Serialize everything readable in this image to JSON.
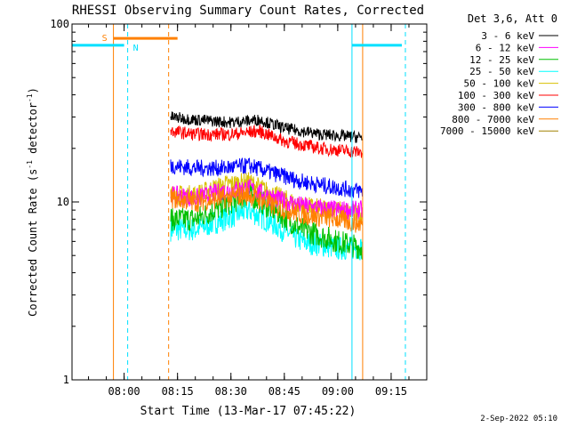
{
  "chart_data": {
    "type": "line",
    "title": "RHESSI Observing Summary Count Rates, Corrected",
    "xlabel": "Start Time (13-Mar-17 07:45:22)",
    "ylabel": "Corrected Count Rate (s⁻¹ detector⁻¹)",
    "ylabel_parts": {
      "main": "Corrected Count Rate (s",
      "sup1": "-1",
      "mid": " detector",
      "sup2": "-1",
      "end": ")"
    },
    "y_scale": "log",
    "ylim": [
      1,
      100
    ],
    "y_ticks": [
      {
        "value": 1,
        "label": "1"
      },
      {
        "value": 10,
        "label": "10"
      },
      {
        "value": 100,
        "label": "100"
      }
    ],
    "xlim": [
      "07:45:22",
      "09:25:00"
    ],
    "x_ticks": [
      "08:00",
      "08:15",
      "08:30",
      "08:45",
      "09:00",
      "09:15"
    ],
    "legend_title": "Det 3,6, Att 0",
    "legend_position": "right",
    "timestamp": "2-Sep-2022 05:10",
    "data_interval": [
      "08:13",
      "09:07"
    ],
    "series": [
      {
        "name": "3 - 6 keV",
        "color": "#000000",
        "x": [
          "08:13",
          "08:20",
          "08:30",
          "08:38",
          "08:45",
          "08:55",
          "09:07"
        ],
        "values": [
          30,
          29,
          28,
          29,
          26,
          24,
          23
        ]
      },
      {
        "name": "6 - 12 keV",
        "color": "#ff00ff",
        "x": [
          "08:13",
          "08:20",
          "08:28",
          "08:35",
          "08:42",
          "08:50",
          "09:00",
          "09:07"
        ],
        "values": [
          11,
          10.5,
          11.5,
          12,
          10.5,
          9.5,
          9,
          9
        ]
      },
      {
        "name": "12 - 25 keV",
        "color": "#00c000",
        "x": [
          "08:13",
          "08:20",
          "08:28",
          "08:35",
          "08:42",
          "08:50",
          "09:00",
          "09:07"
        ],
        "values": [
          8,
          8,
          9.5,
          11,
          9,
          7,
          6,
          5.5
        ]
      },
      {
        "name": "25 - 50 keV",
        "color": "#00ffff",
        "x": [
          "08:13",
          "08:20",
          "08:28",
          "08:35",
          "08:42",
          "08:50",
          "09:00",
          "09:07"
        ],
        "values": [
          7,
          7,
          8,
          9,
          7.5,
          6,
          5.5,
          5.5
        ]
      },
      {
        "name": "50 - 100 keV",
        "color": "#d8c000",
        "x": [
          "08:13",
          "08:20",
          "08:28",
          "08:35",
          "08:42",
          "08:50",
          "09:00",
          "09:07"
        ],
        "values": [
          11,
          11,
          12.5,
          13,
          11,
          9.5,
          9,
          8.5
        ]
      },
      {
        "name": "100 - 300 keV",
        "color": "#ff0000",
        "x": [
          "08:13",
          "08:20",
          "08:30",
          "08:38",
          "08:45",
          "08:55",
          "09:07"
        ],
        "values": [
          25,
          24,
          24,
          25,
          22,
          20,
          19
        ]
      },
      {
        "name": "300 - 800 keV",
        "color": "#0000ff",
        "x": [
          "08:13",
          "08:20",
          "08:28",
          "08:35",
          "08:42",
          "08:50",
          "09:00",
          "09:07"
        ],
        "values": [
          16,
          15.5,
          15.5,
          16,
          14.5,
          13,
          12,
          11.5
        ]
      },
      {
        "name": "800 - 7000 keV",
        "color": "#ff8000",
        "x": [
          "08:13",
          "08:20",
          "08:28",
          "08:35",
          "08:42",
          "08:50",
          "09:00",
          "09:07"
        ],
        "values": [
          10.5,
          10,
          10.5,
          11,
          9.5,
          8.5,
          8,
          7.5
        ]
      },
      {
        "name": "7000 - 15000 keV",
        "color": "#a08000",
        "x": [],
        "values": []
      }
    ],
    "flags": [
      {
        "label": "S",
        "color": "#ff8000",
        "segments": [
          [
            "07:57:00",
            "08:15:00"
          ]
        ],
        "level": 83,
        "boundaries": [
          {
            "t": "07:57:00",
            "dashed": false
          },
          {
            "t": "08:12:30",
            "dashed": true
          },
          {
            "t": "09:07:00",
            "dashed": false
          }
        ]
      },
      {
        "label": "N",
        "color": "#00e0ff",
        "segments": [
          [
            "07:45:22",
            "08:00:00"
          ],
          [
            "09:04:00",
            "09:18:00"
          ]
        ],
        "level": 76,
        "boundaries": [
          {
            "t": "08:01:00",
            "dashed": true
          },
          {
            "t": "09:04:00",
            "dashed": false
          },
          {
            "t": "09:19:00",
            "dashed": true
          }
        ]
      }
    ]
  }
}
